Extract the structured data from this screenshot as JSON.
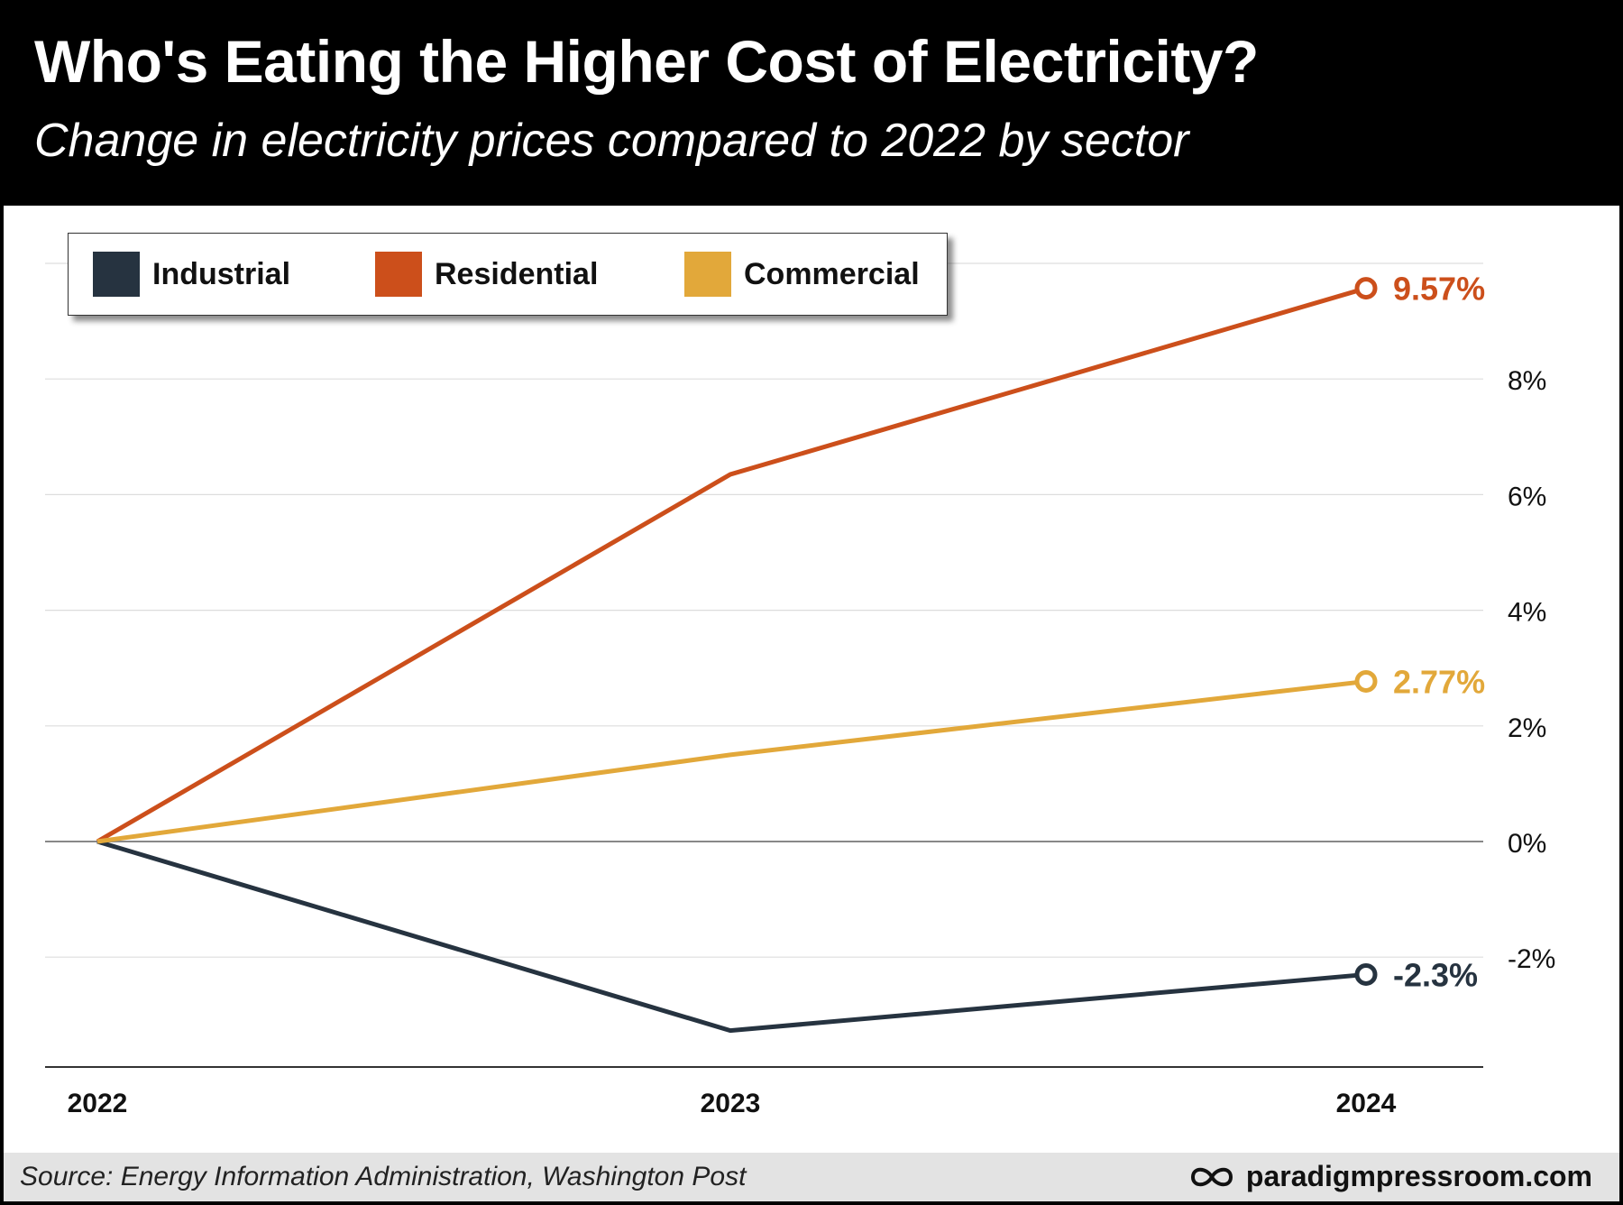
{
  "header": {
    "title": "Who's Eating the Higher Cost of Electricity?",
    "subtitle": "Change in electricity prices compared to 2022 by sector"
  },
  "footer": {
    "source": "Source: Energy Information Administration, Washington Post",
    "brand": "paradigmpressroom.com",
    "brand_icon": "infinity-icon"
  },
  "colors": {
    "background_header": "#000000",
    "panel": "#ffffff",
    "footer": "#e3e3e3",
    "gridline": "#dddddd",
    "zero_line": "#888888",
    "axis": "#333333"
  },
  "chart_data": {
    "type": "line",
    "title": "Who's Eating the Higher Cost of Electricity?",
    "subtitle": "Change in electricity prices compared to 2022 by sector",
    "xlabel": "",
    "ylabel": "",
    "categories": [
      "2022",
      "2023",
      "2024"
    ],
    "ylim": [
      -3.9,
      10
    ],
    "yticks": [
      -2,
      0,
      2,
      4,
      6,
      8
    ],
    "ytick_labels": [
      "-2%",
      "0%",
      "2%",
      "4%",
      "6%",
      "8%"
    ],
    "grid": true,
    "legend_position": "top-left",
    "series": [
      {
        "name": "Industrial",
        "color": "#263340",
        "values": [
          0,
          -3.27,
          -2.3
        ],
        "end_label": "-2.3%"
      },
      {
        "name": "Residential",
        "color": "#cc4f1b",
        "values": [
          0,
          6.35,
          9.57
        ],
        "end_label": "9.57%"
      },
      {
        "name": "Commercial",
        "color": "#e2a83a",
        "values": [
          0,
          1.5,
          2.77
        ],
        "end_label": "2.77%"
      }
    ]
  }
}
